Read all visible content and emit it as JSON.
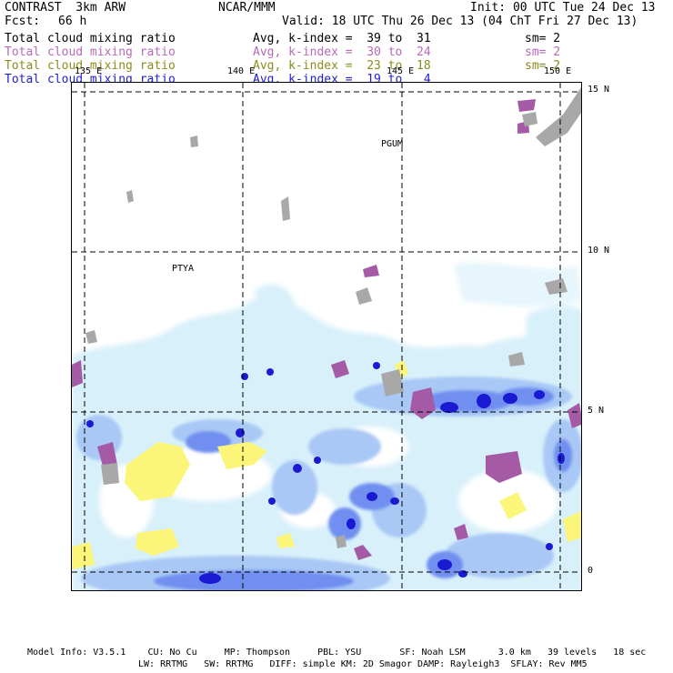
{
  "header": {
    "model": "CONTRAST  3km ARW",
    "center": "NCAR/MMM",
    "init": "Init: 00 UTC Tue 24 Dec 13",
    "fcst_label": "Fcst:",
    "fcst_value": "66 h",
    "valid": "Valid: 18 UTC Thu 26 Dec 13 (04 ChT Fri 27 Dec 13)"
  },
  "fields": [
    {
      "name": "Total cloud mixing ratio",
      "stat": "Avg, k-index =  39 to  31",
      "sm": "sm= 2",
      "color": "#000000"
    },
    {
      "name": "Total cloud mixing ratio",
      "stat": "Avg, k-index =  30 to  24",
      "sm": "sm= 2",
      "color": "#b86ab8"
    },
    {
      "name": "Total cloud mixing ratio",
      "stat": "Avg, k-index =  23 to  18",
      "sm": "sm= 2",
      "color": "#8c8c1e"
    },
    {
      "name": "Total cloud mixing ratio",
      "stat": "Avg, k-index =  19 to   4",
      "sm": "",
      "color": "#1e1ed2"
    }
  ],
  "map": {
    "lon_labels": [
      "135 E",
      "140 E",
      "145 E",
      "150 E"
    ],
    "lat_labels": [
      "15 N",
      "10 N",
      "5 N",
      "0"
    ],
    "stations": [
      "PGUM",
      "PTYA"
    ]
  },
  "footer": {
    "line1": "Model Info: V3.5.1    CU: No Cu     MP: Thompson     PBL: YSU       SF: Noah LSM      3.0 km   39 levels   18 sec",
    "line2": "LW: RRTMG   SW: RRTMG   DIFF: simple KM: 2D Smagor DAMP: Rayleigh3  SFLAY: Rev MM5"
  }
}
